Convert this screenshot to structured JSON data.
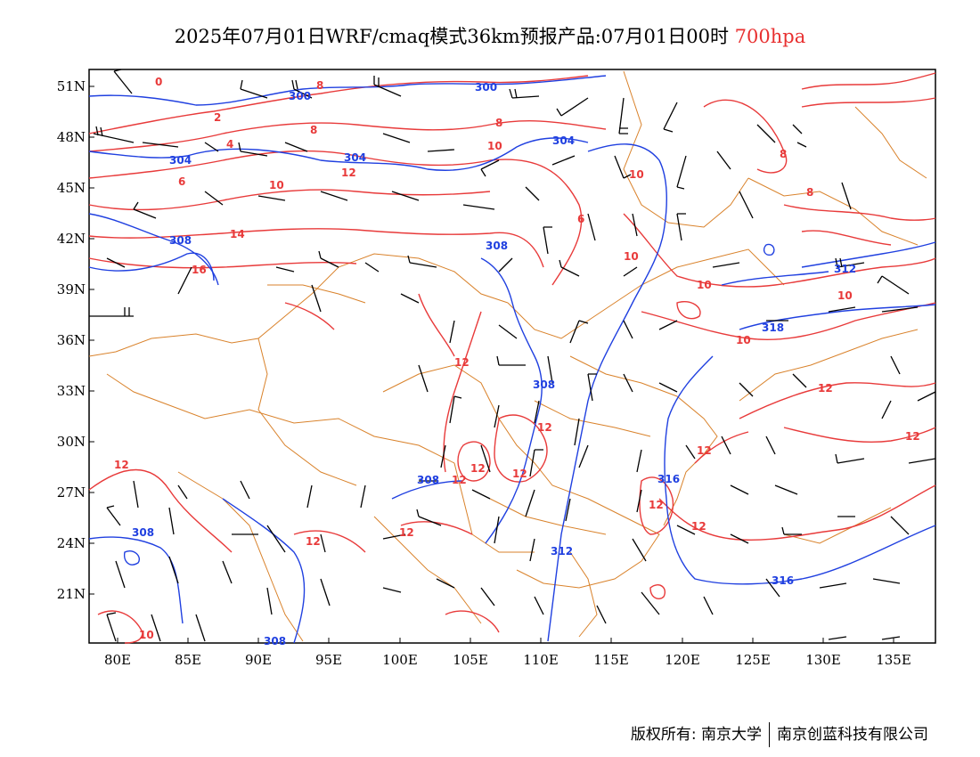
{
  "header": {
    "title": "2025年07月01日WRF/cmaq模式36km预报产品:07月01日00时",
    "level": "700hpa"
  },
  "axes": {
    "lat_labels": [
      "51N",
      "48N",
      "45N",
      "42N",
      "39N",
      "36N",
      "33N",
      "30N",
      "27N",
      "24N",
      "21N"
    ],
    "lon_labels": [
      "80E",
      "85E",
      "90E",
      "95E",
      "100E",
      "105E",
      "110E",
      "115E",
      "120E",
      "125E",
      "130E",
      "135E"
    ]
  },
  "contours": {
    "geopotential_labels": [
      "300",
      "300",
      "304",
      "304",
      "304",
      "308",
      "308",
      "308",
      "308",
      "308",
      "312",
      "316",
      "316",
      "318",
      "312",
      "308"
    ],
    "temperature_labels": [
      "0",
      "2",
      "4",
      "6",
      "6",
      "8",
      "8",
      "8",
      "8",
      "8",
      "10",
      "10",
      "10",
      "10",
      "10",
      "10",
      "10",
      "12",
      "12",
      "12",
      "12",
      "12",
      "12",
      "12",
      "12",
      "12",
      "12",
      "12",
      "12",
      "12",
      "12",
      "14",
      "16",
      "10"
    ]
  },
  "colors": {
    "geopotential": "#2040e0",
    "temperature": "#e83a3a",
    "borders": "#d9822b",
    "wind": "#000000"
  },
  "footer": {
    "copyright": "版权所有: 南京大学",
    "company": "南京创蓝科技有限公司"
  }
}
